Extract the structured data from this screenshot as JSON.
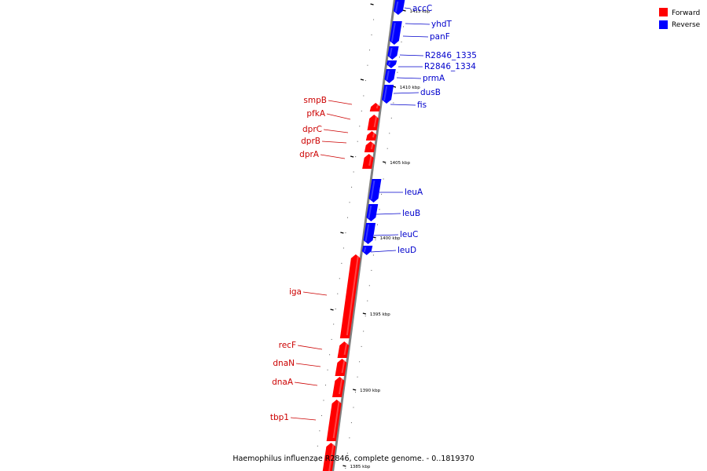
{
  "legend": [
    {
      "label": "Forward",
      "color": "#ff0000"
    },
    {
      "label": "Reverse",
      "color": "#0000ff"
    }
  ],
  "caption": "Haemophilus influenzae R2846, complete genome. - 0..1819370",
  "colors": {
    "forward": "#ff0000",
    "reverse": "#0000ff",
    "forward_label": "#cc0000",
    "reverse_label": "#0000cc",
    "backbone": "#808080"
  },
  "position_ticks": [
    "1415 kbp",
    "1410 kbp",
    "1405 kbp",
    "1400 kbp",
    "1395 kbp",
    "1390 kbp",
    "1385 kbp"
  ],
  "forward_genes": [
    "smpB",
    "pfkA",
    "dprC",
    "dprB",
    "dprA",
    "iga",
    "recF",
    "dnaN",
    "dnaA",
    "tbp1"
  ],
  "reverse_genes": [
    "accC",
    "yhdT",
    "panF",
    "R2846_1335",
    "R2846_1334",
    "prmA",
    "dusB",
    "fis",
    "leuA",
    "leuB",
    "leuC",
    "leuD"
  ]
}
